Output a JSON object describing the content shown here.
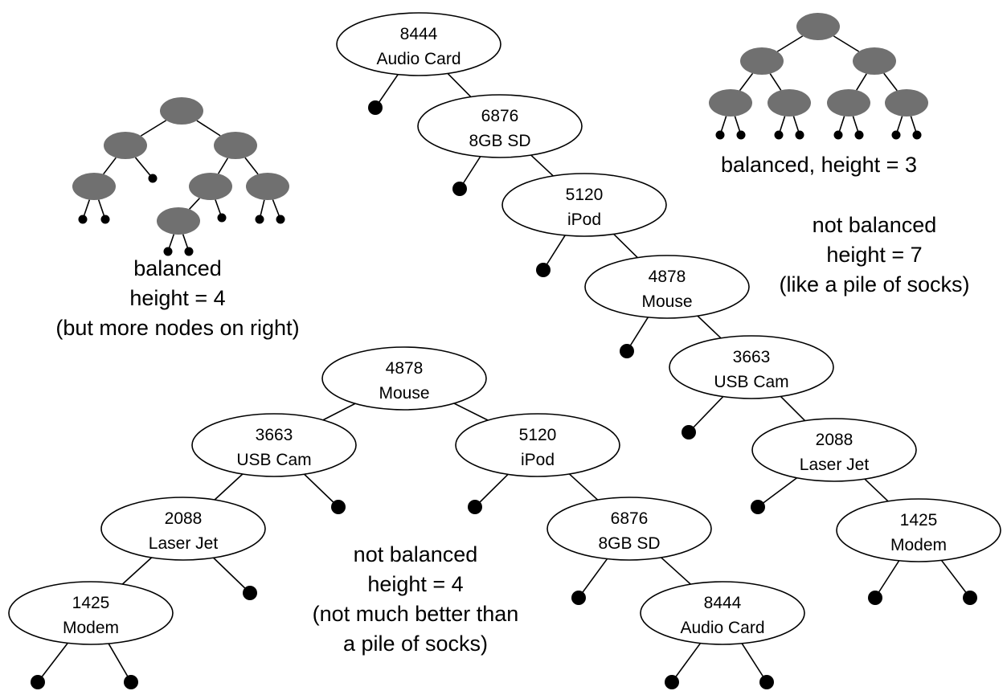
{
  "colors": {
    "background": "#ffffff",
    "stroke": "#000000",
    "node_fill": "#ffffff",
    "shape_node_fill": "#707070",
    "leaf": "#000000"
  },
  "trees": {
    "pile": {
      "nodes": [
        {
          "id": "8444",
          "line1": "8444",
          "line2": "Audio Card"
        },
        {
          "id": "6876",
          "line1": "6876",
          "line2": "8GB SD"
        },
        {
          "id": "5120",
          "line1": "5120",
          "line2": "iPod"
        },
        {
          "id": "4878",
          "line1": "4878",
          "line2": "Mouse"
        },
        {
          "id": "3663",
          "line1": "3663",
          "line2": "USB Cam"
        },
        {
          "id": "2088",
          "line1": "2088",
          "line2": "Laser Jet"
        },
        {
          "id": "1425",
          "line1": "1425",
          "line2": "Modem"
        }
      ],
      "caption": [
        "not balanced",
        "height = 7",
        "(like a pile of socks)"
      ]
    },
    "bottom": {
      "nodes": [
        {
          "id": "4878",
          "line1": "4878",
          "line2": "Mouse"
        },
        {
          "id": "3663",
          "line1": "3663",
          "line2": "USB Cam"
        },
        {
          "id": "2088",
          "line1": "2088",
          "line2": "Laser Jet"
        },
        {
          "id": "1425",
          "line1": "1425",
          "line2": "Modem"
        },
        {
          "id": "5120",
          "line1": "5120",
          "line2": "iPod"
        },
        {
          "id": "6876",
          "line1": "6876",
          "line2": "8GB SD"
        },
        {
          "id": "8444",
          "line1": "8444",
          "line2": "Audio Card"
        }
      ],
      "caption": [
        "not balanced",
        "height = 4",
        "(not much better than",
        "a pile of socks)"
      ]
    },
    "shape_left": {
      "caption": [
        "balanced",
        "height = 4",
        "(but more nodes on right)"
      ]
    },
    "shape_right": {
      "caption": [
        "balanced, height = 3"
      ]
    }
  }
}
